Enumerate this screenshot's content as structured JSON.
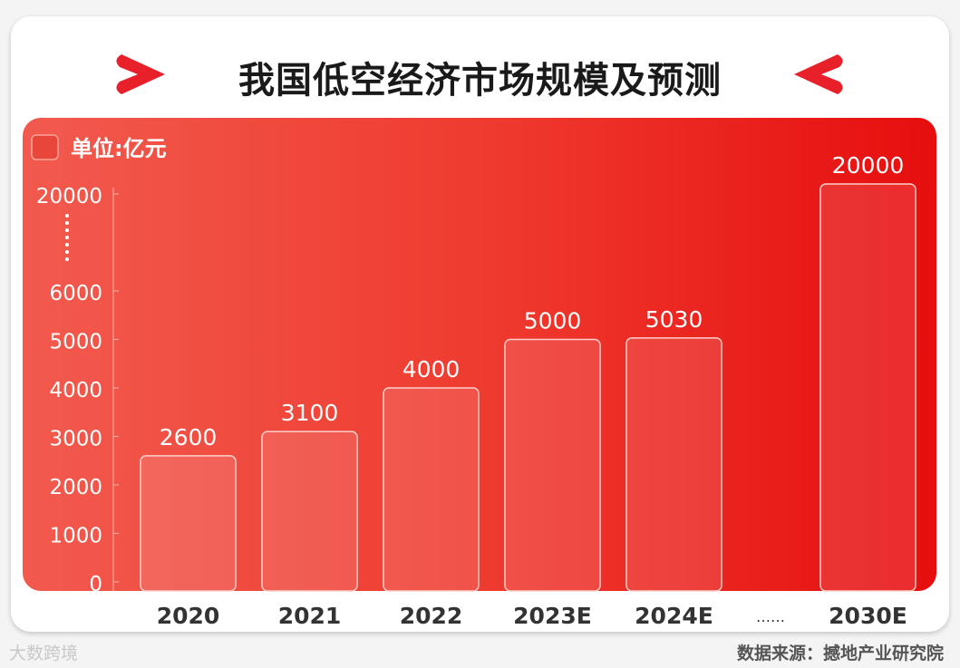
{
  "title": "我国低空经济市场规模及预测",
  "footer": {
    "source": "数据来源：撼地产业研究院",
    "watermark": "大数跨境"
  },
  "colors": {
    "panel_start": "#f25a4e",
    "panel_end": "#e60e0e",
    "accent": "#e8202a"
  },
  "chart_data": {
    "type": "bar",
    "unit_label": "单位:亿元",
    "categories": [
      "2020",
      "2021",
      "2022",
      "2023E",
      "2024E",
      "2030E"
    ],
    "values": [
      2600,
      3100,
      4000,
      5000,
      5030,
      20000
    ],
    "value_labels": [
      "2600",
      "3100",
      "4000",
      "5000",
      "5030",
      "20000"
    ],
    "axis_break_label": "……",
    "yticks": [
      "0",
      "1000",
      "2000",
      "3000",
      "4000",
      "5000",
      "6000",
      "20000"
    ],
    "ylim": [
      0,
      20000
    ],
    "axis_break": [
      6000,
      20000
    ],
    "grid": false
  }
}
